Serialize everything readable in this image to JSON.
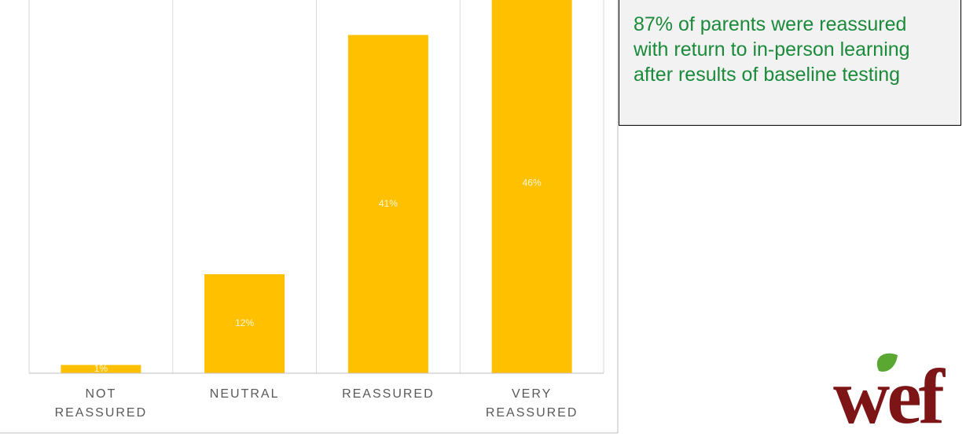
{
  "chart_data": {
    "type": "bar",
    "categories": [
      "NOT REASSURED",
      "NEUTRAL",
      "REASSURED",
      "VERY REASSURED"
    ],
    "values": [
      1,
      12,
      41,
      46
    ],
    "value_labels": [
      "1%",
      "12%",
      "41%",
      "46%"
    ],
    "color": "#ffc000",
    "annotation": "87% of parents were reassured with return to in-person learning after results of baseline testing",
    "logo": "wef"
  }
}
